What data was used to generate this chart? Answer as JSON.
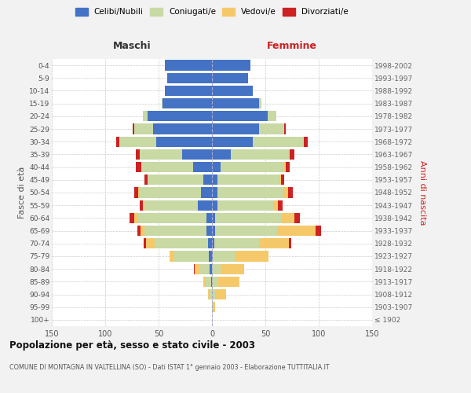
{
  "age_groups": [
    "100+",
    "95-99",
    "90-94",
    "85-89",
    "80-84",
    "75-79",
    "70-74",
    "65-69",
    "60-64",
    "55-59",
    "50-54",
    "45-49",
    "40-44",
    "35-39",
    "30-34",
    "25-29",
    "20-24",
    "15-19",
    "10-14",
    "5-9",
    "0-4"
  ],
  "birth_years": [
    "≤ 1902",
    "1903-1907",
    "1908-1912",
    "1913-1917",
    "1918-1922",
    "1923-1927",
    "1928-1932",
    "1933-1937",
    "1938-1942",
    "1943-1947",
    "1948-1952",
    "1953-1957",
    "1958-1962",
    "1963-1967",
    "1968-1972",
    "1973-1977",
    "1978-1982",
    "1983-1987",
    "1988-1992",
    "1993-1997",
    "1998-2002"
  ],
  "maschi": {
    "celibi": [
      0,
      0,
      0,
      1,
      2,
      3,
      4,
      5,
      5,
      13,
      10,
      8,
      18,
      28,
      52,
      55,
      60,
      46,
      44,
      42,
      44
    ],
    "coniugati": [
      0,
      0,
      3,
      5,
      10,
      32,
      50,
      58,
      65,
      50,
      58,
      52,
      48,
      40,
      35,
      18,
      5,
      1,
      0,
      0,
      0
    ],
    "vedovi": [
      0,
      0,
      1,
      2,
      4,
      5,
      8,
      4,
      3,
      2,
      1,
      0,
      0,
      0,
      0,
      0,
      0,
      0,
      0,
      0,
      0
    ],
    "divorziati": [
      0,
      0,
      0,
      0,
      1,
      0,
      2,
      3,
      4,
      3,
      4,
      3,
      5,
      3,
      3,
      1,
      0,
      0,
      0,
      0,
      0
    ]
  },
  "femmine": {
    "nubili": [
      0,
      0,
      0,
      0,
      0,
      1,
      2,
      3,
      3,
      5,
      5,
      5,
      8,
      18,
      38,
      44,
      52,
      44,
      38,
      34,
      36
    ],
    "coniugate": [
      0,
      1,
      3,
      6,
      8,
      20,
      42,
      58,
      62,
      52,
      62,
      58,
      60,
      55,
      48,
      24,
      8,
      2,
      0,
      0,
      0
    ],
    "vedove": [
      0,
      2,
      10,
      20,
      22,
      32,
      28,
      36,
      12,
      5,
      4,
      2,
      1,
      0,
      0,
      0,
      0,
      0,
      0,
      0,
      0
    ],
    "divorziate": [
      0,
      0,
      0,
      0,
      0,
      0,
      2,
      5,
      5,
      4,
      5,
      3,
      4,
      4,
      4,
      1,
      0,
      0,
      0,
      0,
      0
    ]
  },
  "colors": {
    "celibi": "#4472c4",
    "coniugati": "#c8d9a4",
    "vedovi": "#f5c96a",
    "divorziati": "#cc2222"
  },
  "xlim": 150,
  "title": "Popolazione per età, sesso e stato civile - 2003",
  "subtitle": "COMUNE DI MONTAGNA IN VALTELLINA (SO) - Dati ISTAT 1° gennaio 2003 - Elaborazione TUTTITALIA.IT",
  "ylabel_left": "Fasce di età",
  "ylabel_right": "Anni di nascita",
  "label_maschi": "Maschi",
  "label_femmine": "Femmine",
  "legend_labels": [
    "Celibi/Nubili",
    "Coniugati/e",
    "Vedovi/e",
    "Divorziati/e"
  ],
  "bg_color": "#f2f2f2",
  "plot_bg": "#ffffff"
}
